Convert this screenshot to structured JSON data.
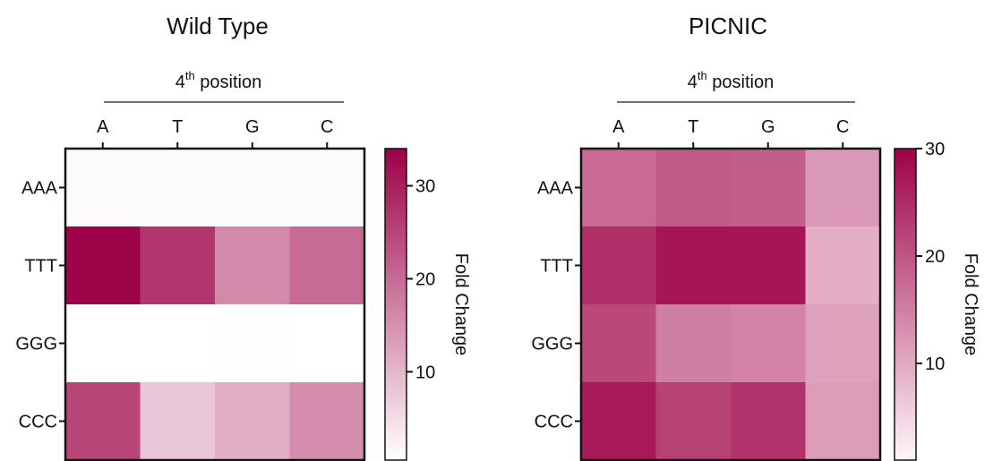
{
  "chart_data": [
    {
      "type": "heatmap",
      "title": "Wild Type",
      "xlabel": "4",
      "xlabel_sup": "th",
      "xlabel_rest": " position",
      "columns": [
        "A",
        "T",
        "G",
        "C"
      ],
      "rows": [
        "AAA",
        "TTT",
        "GGG",
        "CCC"
      ],
      "values": [
        [
          1.2,
          1.0,
          1.2,
          1.0
        ],
        [
          33.5,
          27.0,
          16.0,
          20.0
        ],
        [
          0.5,
          0.5,
          0.8,
          0.5
        ],
        [
          25.0,
          8.0,
          11.0,
          15.5
        ]
      ],
      "colorbar": {
        "label": "Fold Change",
        "min": 0.5,
        "max": 34,
        "ticks": [
          10,
          20,
          30
        ]
      },
      "colors": {
        "low": "#ffffff",
        "high": "#9e0047"
      }
    },
    {
      "type": "heatmap",
      "title": "PICNIC",
      "xlabel": "4",
      "xlabel_sup": "th",
      "xlabel_rest": " position",
      "columns": [
        "A",
        "T",
        "G",
        "C"
      ],
      "rows": [
        "AAA",
        "TTT",
        "GGG",
        "CCC"
      ],
      "values": [
        [
          17.5,
          19.5,
          19.0,
          12.0
        ],
        [
          24.5,
          27.5,
          27.5,
          9.5
        ],
        [
          21.5,
          15.0,
          14.5,
          11.0
        ],
        [
          27.0,
          22.5,
          24.0,
          11.5
        ]
      ],
      "colorbar": {
        "label": "Fold Change",
        "min": 1,
        "max": 30,
        "ticks": [
          10,
          20,
          30
        ]
      },
      "colors": {
        "low": "#fff6fa",
        "high": "#9e0047"
      }
    }
  ]
}
